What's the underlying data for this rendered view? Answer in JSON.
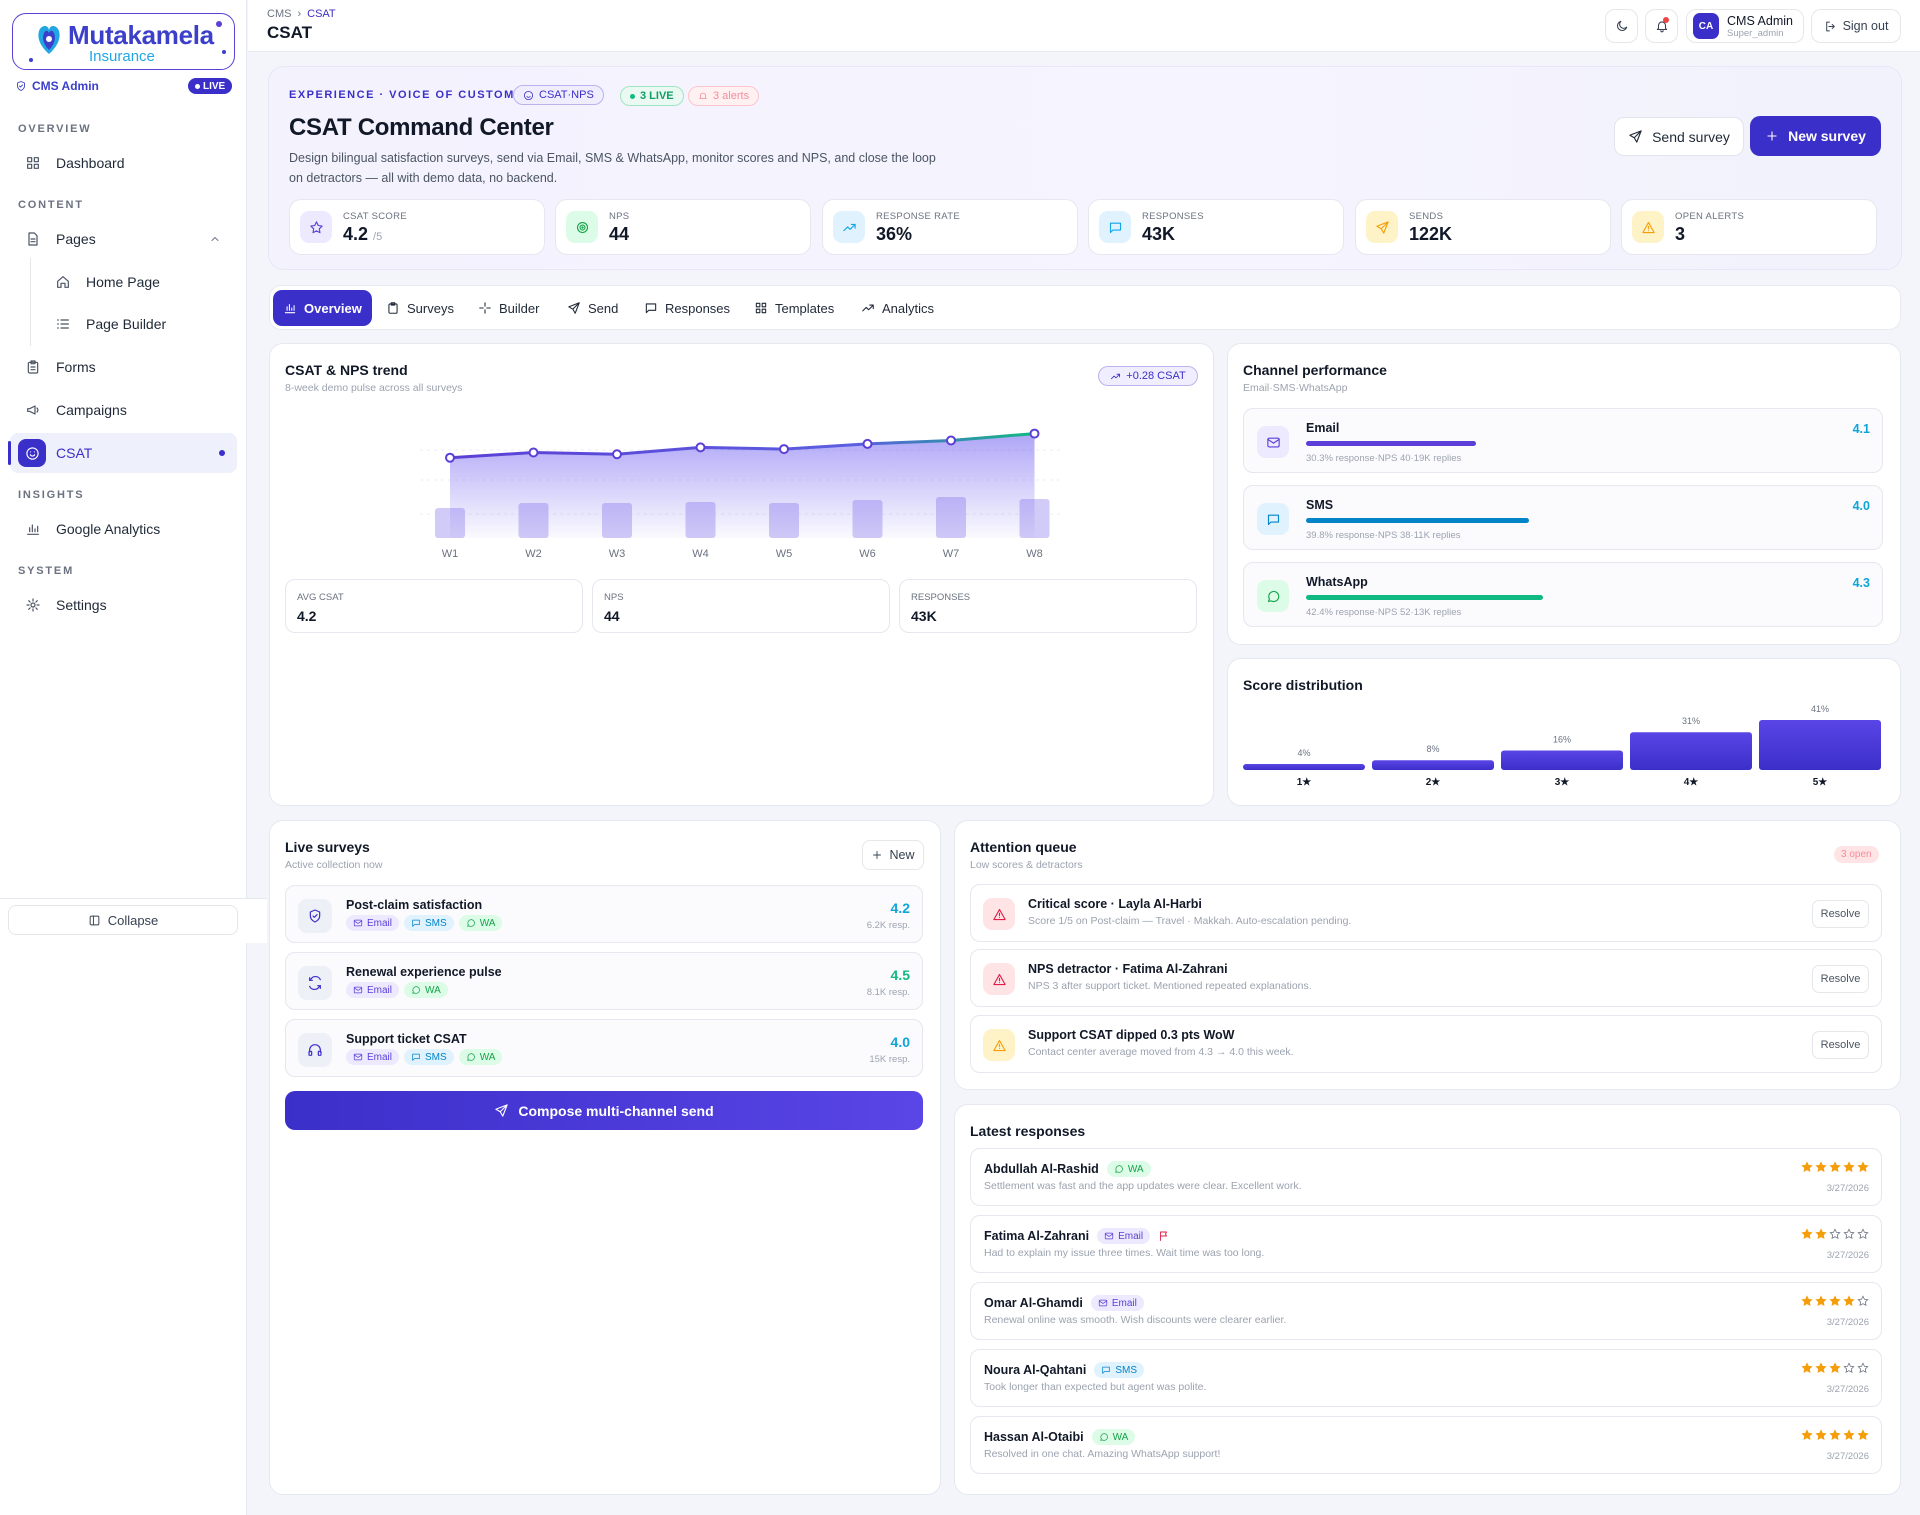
{
  "brand": {
    "name": "Mutakamela",
    "sub": "Insurance",
    "role": "CMS Admin",
    "live": "LIVE"
  },
  "sidebar": {
    "sections": [
      "OVERVIEW",
      "CONTENT",
      "INSIGHTS",
      "SYSTEM"
    ],
    "items": {
      "dashboard": "Dashboard",
      "pages": "Pages",
      "home_page": "Home Page",
      "page_builder": "Page Builder",
      "forms": "Forms",
      "campaigns": "Campaigns",
      "csat": "CSAT",
      "google_analytics": "Google Analytics",
      "settings": "Settings"
    },
    "collapse": "Collapse"
  },
  "topbar": {
    "crumb_root": "CMS",
    "crumb_current": "CSAT",
    "title": "CSAT",
    "user_initials": "CA",
    "user_name": "CMS Admin",
    "user_role": "Super_admin",
    "sign_out": "Sign out"
  },
  "hero": {
    "eyebrow": "EXPERIENCE · VOICE OF CUSTOMER",
    "pill_csat": "CSAT·NPS",
    "pill_live": "3 LIVE",
    "pill_alerts": "3 alerts",
    "title": "CSAT Command Center",
    "description": "Design bilingual satisfaction surveys, send via Email, SMS & WhatsApp, monitor scores and NPS, and close the loop on detractors — all with demo data, no backend.",
    "send_survey": "Send survey",
    "new_survey": "New survey",
    "kpis": [
      {
        "label": "CSAT SCORE",
        "value": "4.2",
        "suffix": "/5"
      },
      {
        "label": "NPS",
        "value": "44"
      },
      {
        "label": "RESPONSE RATE",
        "value": "36%"
      },
      {
        "label": "RESPONSES",
        "value": "43K"
      },
      {
        "label": "SENDS",
        "value": "122K"
      },
      {
        "label": "OPEN ALERTS",
        "value": "3"
      }
    ]
  },
  "tabs": [
    "Overview",
    "Surveys",
    "Builder",
    "Send",
    "Responses",
    "Templates",
    "Analytics"
  ],
  "trend": {
    "title": "CSAT & NPS trend",
    "subtitle": "8-week demo pulse across all surveys",
    "badge": "+0.28 CSAT",
    "mini": [
      {
        "label": "AVG CSAT",
        "value": "4.2"
      },
      {
        "label": "NPS",
        "value": "44"
      },
      {
        "label": "RESPONSES",
        "value": "43K"
      }
    ]
  },
  "chart_data": [
    {
      "type": "line",
      "title": "CSAT & NPS trend",
      "categories": [
        "W1",
        "W2",
        "W3",
        "W4",
        "W5",
        "W6",
        "W7",
        "W8"
      ],
      "series": [
        {
          "name": "CSAT",
          "values": [
            4.0,
            4.06,
            4.04,
            4.12,
            4.1,
            4.16,
            4.2,
            4.28
          ]
        },
        {
          "name": "Responses",
          "values": [
            30,
            35,
            35,
            36,
            35,
            38,
            41,
            39
          ]
        }
      ]
    },
    {
      "type": "bar",
      "title": "Score distribution",
      "categories": [
        "1★",
        "2★",
        "3★",
        "4★",
        "5★"
      ],
      "values": [
        4,
        8,
        16,
        31,
        41
      ],
      "data_labels": [
        "4%",
        "8%",
        "16%",
        "31%",
        "41%"
      ]
    }
  ],
  "channels": {
    "title": "Channel performance",
    "subtitle": "Email·SMS·WhatsApp",
    "items": [
      {
        "name": "Email",
        "score": "4.1",
        "rate": 30.3,
        "meta": "30.3% response·NPS 40·19K replies",
        "color": "#5b3fd6"
      },
      {
        "name": "SMS",
        "score": "4.0",
        "rate": 39.8,
        "meta": "39.8% response·NPS 38·11K replies",
        "color": "#0284c7"
      },
      {
        "name": "WhatsApp",
        "score": "4.3",
        "rate": 42.4,
        "meta": "42.4% response·NPS 52·13K replies",
        "color": "#10b981"
      }
    ]
  },
  "distribution": {
    "title": "Score distribution"
  },
  "live_surveys": {
    "title": "Live surveys",
    "subtitle": "Active collection now",
    "new": "New",
    "items": [
      {
        "name": "Post-claim satisfaction",
        "score": "4.2",
        "resp": "6.2K resp."
      },
      {
        "name": "Renewal experience pulse",
        "score": "4.5",
        "resp": "8.1K resp."
      },
      {
        "name": "Support ticket CSAT",
        "score": "4.0",
        "resp": "15K resp."
      }
    ],
    "chip_email": "Email",
    "chip_sms": "SMS",
    "chip_wa": "WA",
    "compose": "Compose multi-channel send"
  },
  "attention": {
    "title": "Attention queue",
    "subtitle": "Low scores & detractors",
    "open": "3 open",
    "resolve": "Resolve",
    "items": [
      {
        "title": "Critical score · Layla Al-Harbi",
        "desc": "Score 1/5 on Post-claim — Travel · Makkah. Auto-escalation pending."
      },
      {
        "title": "NPS detractor · Fatima Al-Zahrani",
        "desc": "NPS 3 after support ticket. Mentioned repeated explanations."
      },
      {
        "title": "Support CSAT dipped 0.3 pts WoW",
        "desc": "Contact center average moved from 4.3 → 4.0 this week."
      }
    ]
  },
  "responses": {
    "title": "Latest responses",
    "items": [
      {
        "name": "Abdullah Al-Rashid",
        "channel": "WA",
        "comment": "Settlement was fast and the app updates were clear. Excellent work.",
        "stars": 5,
        "date": "3/27/2026"
      },
      {
        "name": "Fatima Al-Zahrani",
        "channel": "Email",
        "comment": "Had to explain my issue three times. Wait time was too long.",
        "stars": 2,
        "date": "3/27/2026"
      },
      {
        "name": "Omar Al-Ghamdi",
        "channel": "Email",
        "comment": "Renewal online was smooth. Wish discounts were clearer earlier.",
        "stars": 4,
        "date": "3/27/2026"
      },
      {
        "name": "Noura Al-Qahtani",
        "channel": "SMS",
        "comment": "Took longer than expected but agent was polite.",
        "stars": 3,
        "date": "3/27/2026"
      },
      {
        "name": "Hassan Al-Otaibi",
        "channel": "WA",
        "comment": "Resolved in one chat. Amazing WhatsApp support!",
        "stars": 5,
        "date": "3/27/2026"
      }
    ]
  }
}
